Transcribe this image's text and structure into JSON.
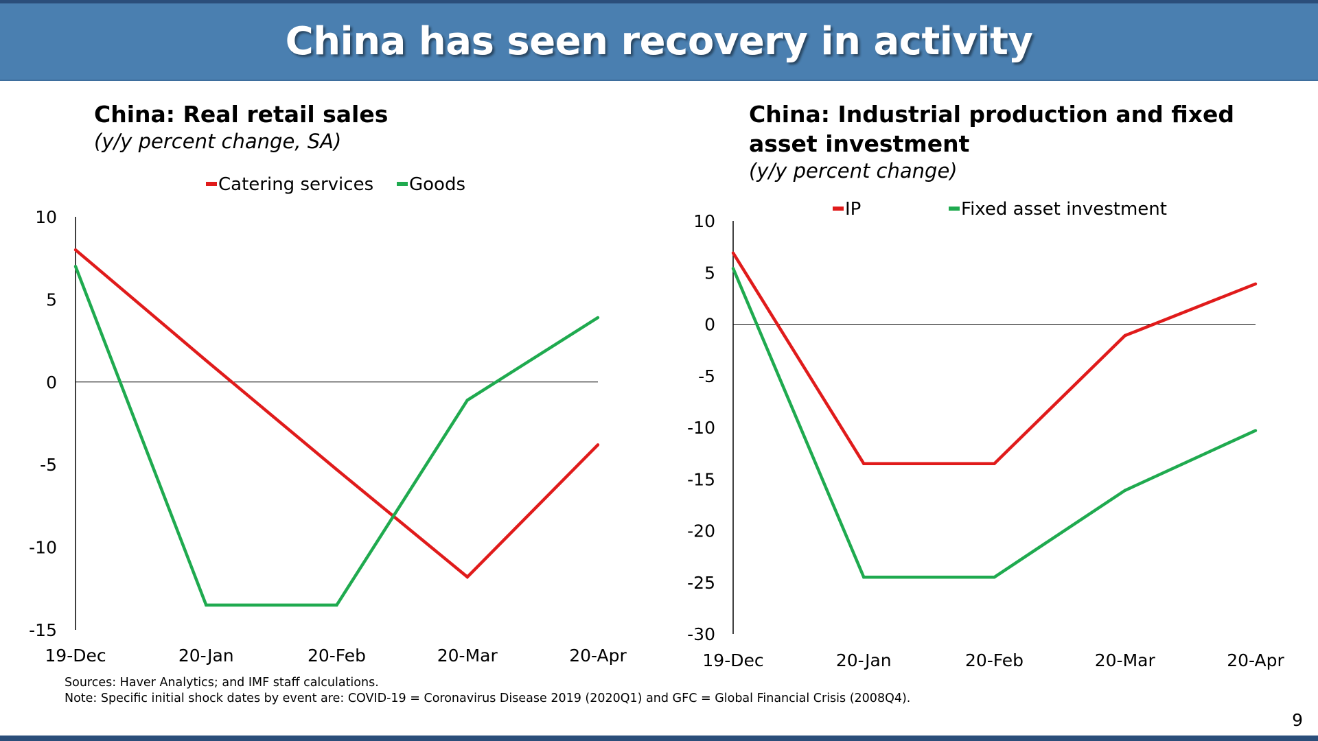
{
  "slide": {
    "title": "China has seen recovery in activity",
    "page_number": "9"
  },
  "footnotes": {
    "sources": "Sources: Haver Analytics; and IMF staff calculations.",
    "note": "Note: Specific initial shock dates by event are: COVID-19 = Coronavirus Disease 2019 (2020Q1) and GFC = Global Financial Crisis (2008Q4)."
  },
  "colors": {
    "banner": "#4a7fb0",
    "banner_rule": "#2b4e7a",
    "series_red": "#e01b1b",
    "series_green": "#1faa4f"
  },
  "chart_data": [
    {
      "type": "line",
      "title": "China: Real retail sales",
      "subtitle": "(y/y percent change, SA)",
      "xlabel": "",
      "ylabel": "",
      "categories": [
        "19-Dec",
        "20-Jan",
        "20-Feb",
        "20-Mar",
        "20-Apr"
      ],
      "ylim": [
        -15,
        10
      ],
      "yticks": [
        10,
        5,
        0,
        -5,
        -10,
        -15
      ],
      "legend_position": "top",
      "series": [
        {
          "name": "Catering services",
          "color": "#e01b1b",
          "values": [
            8.0,
            1.3,
            -5.3,
            -11.8,
            -3.8
          ]
        },
        {
          "name": "Goods",
          "color": "#1faa4f",
          "values": [
            7.0,
            -13.5,
            -13.5,
            -1.1,
            3.9
          ]
        }
      ]
    },
    {
      "type": "line",
      "title": "China: Industrial production and fixed asset investment",
      "subtitle": "(y/y percent change)",
      "xlabel": "",
      "ylabel": "",
      "categories": [
        "19-Dec",
        "20-Jan",
        "20-Feb",
        "20-Mar",
        "20-Apr"
      ],
      "ylim": [
        -30,
        10
      ],
      "yticks": [
        10,
        5,
        0,
        -5,
        -10,
        -15,
        -20,
        -25,
        -30
      ],
      "legend_position": "top",
      "series": [
        {
          "name": "IP",
          "color": "#e01b1b",
          "values": [
            6.9,
            -13.5,
            -13.5,
            -1.1,
            3.9
          ]
        },
        {
          "name": "Fixed asset investment",
          "color": "#1faa4f",
          "values": [
            5.4,
            -24.5,
            -24.5,
            -16.1,
            -10.3
          ]
        }
      ]
    }
  ]
}
